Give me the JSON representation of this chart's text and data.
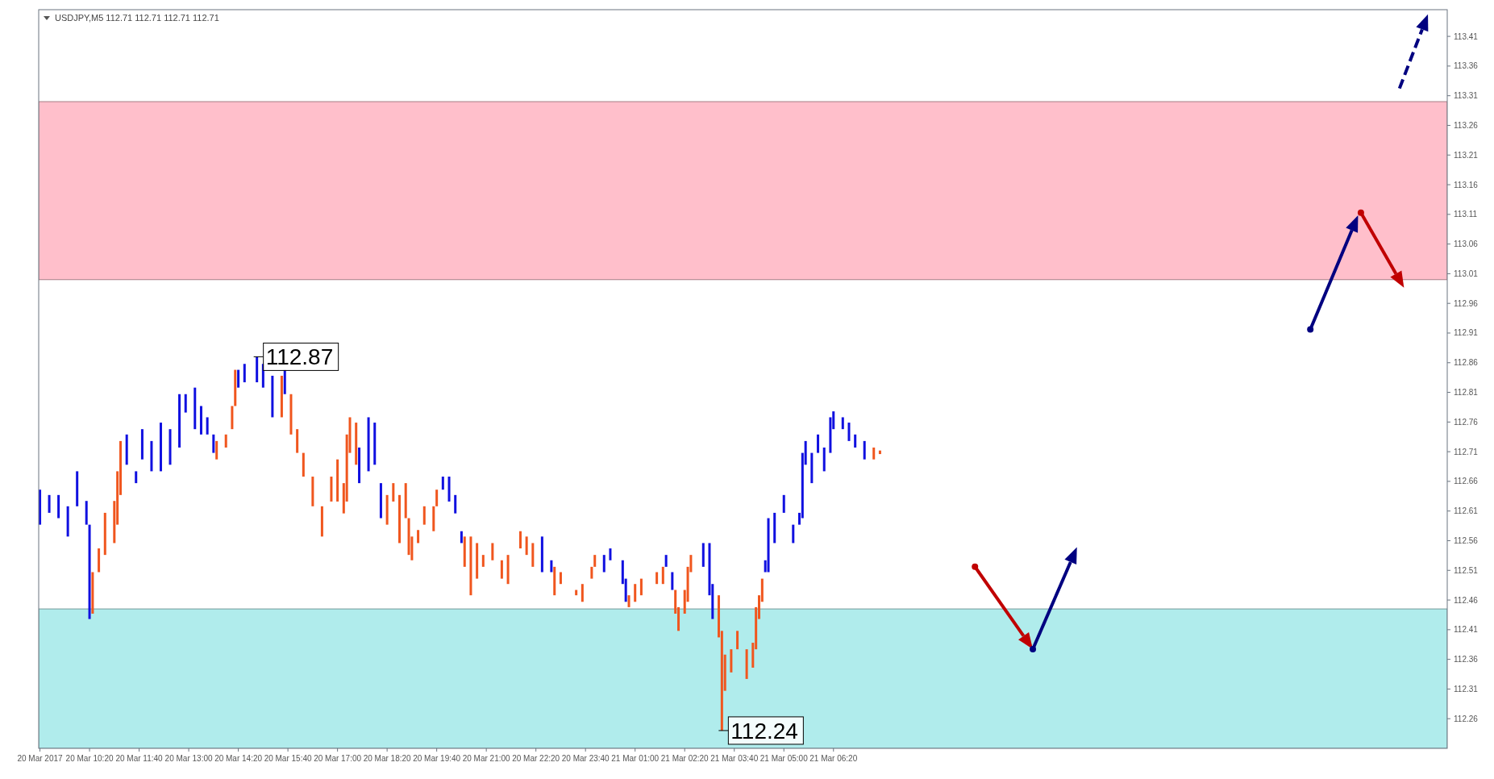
{
  "chart_data": {
    "type": "bar",
    "title": "USDJPY,M5  112.71 112.71 112.71 112.71",
    "series": [
      {
        "color": "#1010e0",
        "x": [
          "2017-03-20T09:00",
          "2017-03-20T09:15",
          "2017-03-20T09:30",
          "2017-03-20T09:45",
          "2017-03-20T10:00",
          "2017-03-20T10:15",
          "2017-03-20T10:20",
          "2017-03-20T11:20",
          "2017-03-20T11:35",
          "2017-03-20T11:45",
          "2017-03-20T12:00",
          "2017-03-20T12:15",
          "2017-03-20T12:30",
          "2017-03-20T12:45",
          "2017-03-20T12:55",
          "2017-03-20T13:10",
          "2017-03-20T13:20",
          "2017-03-20T13:30",
          "2017-03-20T13:40",
          "2017-03-20T14:20",
          "2017-03-20T14:30",
          "2017-03-20T14:50",
          "2017-03-20T15:00",
          "2017-03-20T15:15",
          "2017-03-20T15:35",
          "2017-03-20T17:35",
          "2017-03-20T17:50",
          "2017-03-20T18:00",
          "2017-03-20T18:10",
          "2017-03-20T19:50",
          "2017-03-20T20:00",
          "2017-03-20T20:10",
          "2017-03-20T20:20",
          "2017-03-20T22:30",
          "2017-03-20T22:45",
          "2017-03-21T00:10",
          "2017-03-21T00:20",
          "2017-03-21T00:40",
          "2017-03-21T00:45",
          "2017-03-21T01:50",
          "2017-03-21T02:00",
          "2017-03-21T02:50",
          "2017-03-21T03:00",
          "2017-03-21T03:05",
          "2017-03-21T04:30",
          "2017-03-21T04:35",
          "2017-03-21T04:45",
          "2017-03-21T05:00",
          "2017-03-21T05:15",
          "2017-03-21T05:25",
          "2017-03-21T05:30",
          "2017-03-21T05:35",
          "2017-03-21T05:45",
          "2017-03-21T05:55",
          "2017-03-21T06:05",
          "2017-03-21T06:15",
          "2017-03-21T06:20",
          "2017-03-21T06:35",
          "2017-03-21T06:45",
          "2017-03-21T06:55",
          "2017-03-21T07:10"
        ],
        "base": [
          112.587,
          112.607,
          112.598,
          112.567,
          112.618,
          112.587,
          112.428,
          112.688,
          112.657,
          112.697,
          112.677,
          112.677,
          112.688,
          112.717,
          112.776,
          112.748,
          112.739,
          112.739,
          112.708,
          112.818,
          112.827,
          112.827,
          112.818,
          112.768,
          112.807,
          112.657,
          112.677,
          112.688,
          112.598,
          112.646,
          112.626,
          112.606,
          112.556,
          112.507,
          112.507,
          112.507,
          112.527,
          112.487,
          112.457,
          112.516,
          112.477,
          112.516,
          112.468,
          112.428,
          112.507,
          112.507,
          112.556,
          112.607,
          112.556,
          112.587,
          112.598,
          112.688,
          112.657,
          112.708,
          112.677,
          112.708,
          112.748,
          112.748,
          112.728,
          112.717,
          112.697
        ],
        "values": [
          0.059,
          0.03,
          0.039,
          0.051,
          0.059,
          0.04,
          0.159,
          0.051,
          0.02,
          0.051,
          0.051,
          0.082,
          0.06,
          0.09,
          0.031,
          0.07,
          0.048,
          0.029,
          0.031,
          0.03,
          0.031,
          0.043,
          0.04,
          0.07,
          0.041,
          0.06,
          0.091,
          0.071,
          0.059,
          0.022,
          0.042,
          0.031,
          0.02,
          0.06,
          0.02,
          0.029,
          0.02,
          0.04,
          0.039,
          0.02,
          0.03,
          0.04,
          0.088,
          0.059,
          0.02,
          0.091,
          0.051,
          0.03,
          0.031,
          0.02,
          0.11,
          0.04,
          0.051,
          0.031,
          0.04,
          0.06,
          0.03,
          0.02,
          0.031,
          0.022,
          0.031
        ]
      },
      {
        "color": "#f0561e",
        "x": [
          "2017-03-20T10:25",
          "2017-03-20T10:35",
          "2017-03-20T10:45",
          "2017-03-20T11:00",
          "2017-03-20T11:05",
          "2017-03-20T11:10",
          "2017-03-20T13:45",
          "2017-03-20T14:00",
          "2017-03-20T14:10",
          "2017-03-20T14:15",
          "2017-03-20T15:30",
          "2017-03-20T15:45",
          "2017-03-20T15:55",
          "2017-03-20T16:05",
          "2017-03-20T16:20",
          "2017-03-20T16:35",
          "2017-03-20T16:50",
          "2017-03-20T17:00",
          "2017-03-20T17:10",
          "2017-03-20T17:15",
          "2017-03-20T17:20",
          "2017-03-20T17:30",
          "2017-03-20T18:20",
          "2017-03-20T18:30",
          "2017-03-20T18:40",
          "2017-03-20T18:50",
          "2017-03-20T18:55",
          "2017-03-20T19:00",
          "2017-03-20T19:10",
          "2017-03-20T19:20",
          "2017-03-20T19:35",
          "2017-03-20T19:40",
          "2017-03-20T20:25",
          "2017-03-20T20:35",
          "2017-03-20T20:45",
          "2017-03-20T20:55",
          "2017-03-20T21:10",
          "2017-03-20T21:25",
          "2017-03-20T21:35",
          "2017-03-20T21:55",
          "2017-03-20T22:05",
          "2017-03-20T22:15",
          "2017-03-20T22:50",
          "2017-03-20T23:00",
          "2017-03-20T23:25",
          "2017-03-20T23:35",
          "2017-03-20T23:50",
          "2017-03-20T23:55",
          "2017-03-21T00:50",
          "2017-03-21T01:00",
          "2017-03-21T01:10",
          "2017-03-21T01:35",
          "2017-03-21T01:45",
          "2017-03-21T02:05",
          "2017-03-21T02:10",
          "2017-03-21T02:20",
          "2017-03-21T02:25",
          "2017-03-21T02:30",
          "2017-03-21T03:15",
          "2017-03-21T03:20",
          "2017-03-21T03:25",
          "2017-03-21T03:35",
          "2017-03-21T03:45",
          "2017-03-21T04:00",
          "2017-03-21T04:10",
          "2017-03-21T04:15",
          "2017-03-21T04:20",
          "2017-03-21T04:25",
          "2017-03-21T07:25",
          "2017-03-21T07:35"
        ],
        "base": [
          112.437,
          112.507,
          112.536,
          112.556,
          112.587,
          112.637,
          112.697,
          112.717,
          112.748,
          112.787,
          112.768,
          112.739,
          112.708,
          112.668,
          112.618,
          112.567,
          112.626,
          112.626,
          112.606,
          112.626,
          112.708,
          112.688,
          112.587,
          112.626,
          112.556,
          112.598,
          112.536,
          112.527,
          112.556,
          112.587,
          112.576,
          112.618,
          112.516,
          112.468,
          112.496,
          112.516,
          112.527,
          112.496,
          112.487,
          112.547,
          112.536,
          112.516,
          112.468,
          112.487,
          112.468,
          112.457,
          112.496,
          112.516,
          112.448,
          112.457,
          112.468,
          112.487,
          112.487,
          112.437,
          112.408,
          112.437,
          112.457,
          112.507,
          112.397,
          112.24,
          112.307,
          112.338,
          112.377,
          112.327,
          112.346,
          112.377,
          112.428,
          112.457,
          112.697,
          112.706
        ],
        "values": [
          0.07,
          0.04,
          0.071,
          0.071,
          0.09,
          0.091,
          0.031,
          0.022,
          0.039,
          0.061,
          0.07,
          0.068,
          0.04,
          0.04,
          0.05,
          0.051,
          0.042,
          0.071,
          0.051,
          0.113,
          0.06,
          0.071,
          0.05,
          0.031,
          0.081,
          0.059,
          0.062,
          0.04,
          0.022,
          0.031,
          0.042,
          0.028,
          0.051,
          0.099,
          0.06,
          0.02,
          0.029,
          0.031,
          0.049,
          0.029,
          0.031,
          0.04,
          0.048,
          0.02,
          0.009,
          0.03,
          0.02,
          0.02,
          0.02,
          0.03,
          0.028,
          0.02,
          0.029,
          0.04,
          0.04,
          0.04,
          0.059,
          0.029,
          0.071,
          0.168,
          0.061,
          0.039,
          0.031,
          0.05,
          0.042,
          0.071,
          0.04,
          0.039,
          0.02,
          0.006
        ]
      }
    ],
    "xlim": [
      "2017-03-20T08:58",
      "2017-03-21T22:50"
    ],
    "xticks": [
      {
        "value": "2017-03-20T09:00",
        "label": "20 Mar 2017"
      },
      {
        "value": "2017-03-20T10:20",
        "label": "20 Mar 10:20"
      },
      {
        "value": "2017-03-20T11:40",
        "label": "20 Mar 11:40"
      },
      {
        "value": "2017-03-20T13:00",
        "label": "20 Mar 13:00"
      },
      {
        "value": "2017-03-20T14:20",
        "label": "20 Mar 14:20"
      },
      {
        "value": "2017-03-20T15:40",
        "label": "20 Mar 15:40"
      },
      {
        "value": "2017-03-20T17:00",
        "label": "20 Mar 17:00"
      },
      {
        "value": "2017-03-20T18:20",
        "label": "20 Mar 18:20"
      },
      {
        "value": "2017-03-20T19:40",
        "label": "20 Mar 19:40"
      },
      {
        "value": "2017-03-20T21:00",
        "label": "20 Mar 21:00"
      },
      {
        "value": "2017-03-20T22:20",
        "label": "20 Mar 22:20"
      },
      {
        "value": "2017-03-20T23:40",
        "label": "20 Mar 23:40"
      },
      {
        "value": "2017-03-21T01:00",
        "label": "21 Mar 01:00"
      },
      {
        "value": "2017-03-21T02:20",
        "label": "21 Mar 02:20"
      },
      {
        "value": "2017-03-21T03:40",
        "label": "21 Mar 03:40"
      },
      {
        "value": "2017-03-21T05:00",
        "label": "21 Mar 05:00"
      },
      {
        "value": "2017-03-21T06:20",
        "label": "21 Mar 06:20"
      }
    ],
    "ylim": [
      112.21,
      113.455
    ],
    "yticks": [
      112.26,
      112.31,
      112.36,
      112.41,
      112.46,
      112.51,
      112.56,
      112.61,
      112.66,
      112.71,
      112.76,
      112.81,
      112.86,
      112.91,
      112.96,
      113.01,
      113.06,
      113.11,
      113.16,
      113.21,
      113.26,
      113.31,
      113.36,
      113.41
    ],
    "bands": [
      {
        "axis": "y",
        "from": 113.0,
        "to": 113.3,
        "color": "#ffbfcb"
      },
      {
        "axis": "y",
        "from": 112.21,
        "to": 112.445,
        "color": "#b0ecec"
      }
    ],
    "annotations": [
      {
        "text": "112.87",
        "x": "2017-03-20T14:50",
        "y": 112.87
      },
      {
        "text": "112.24",
        "x": "2017-03-21T03:20",
        "y": 112.24
      }
    ]
  }
}
